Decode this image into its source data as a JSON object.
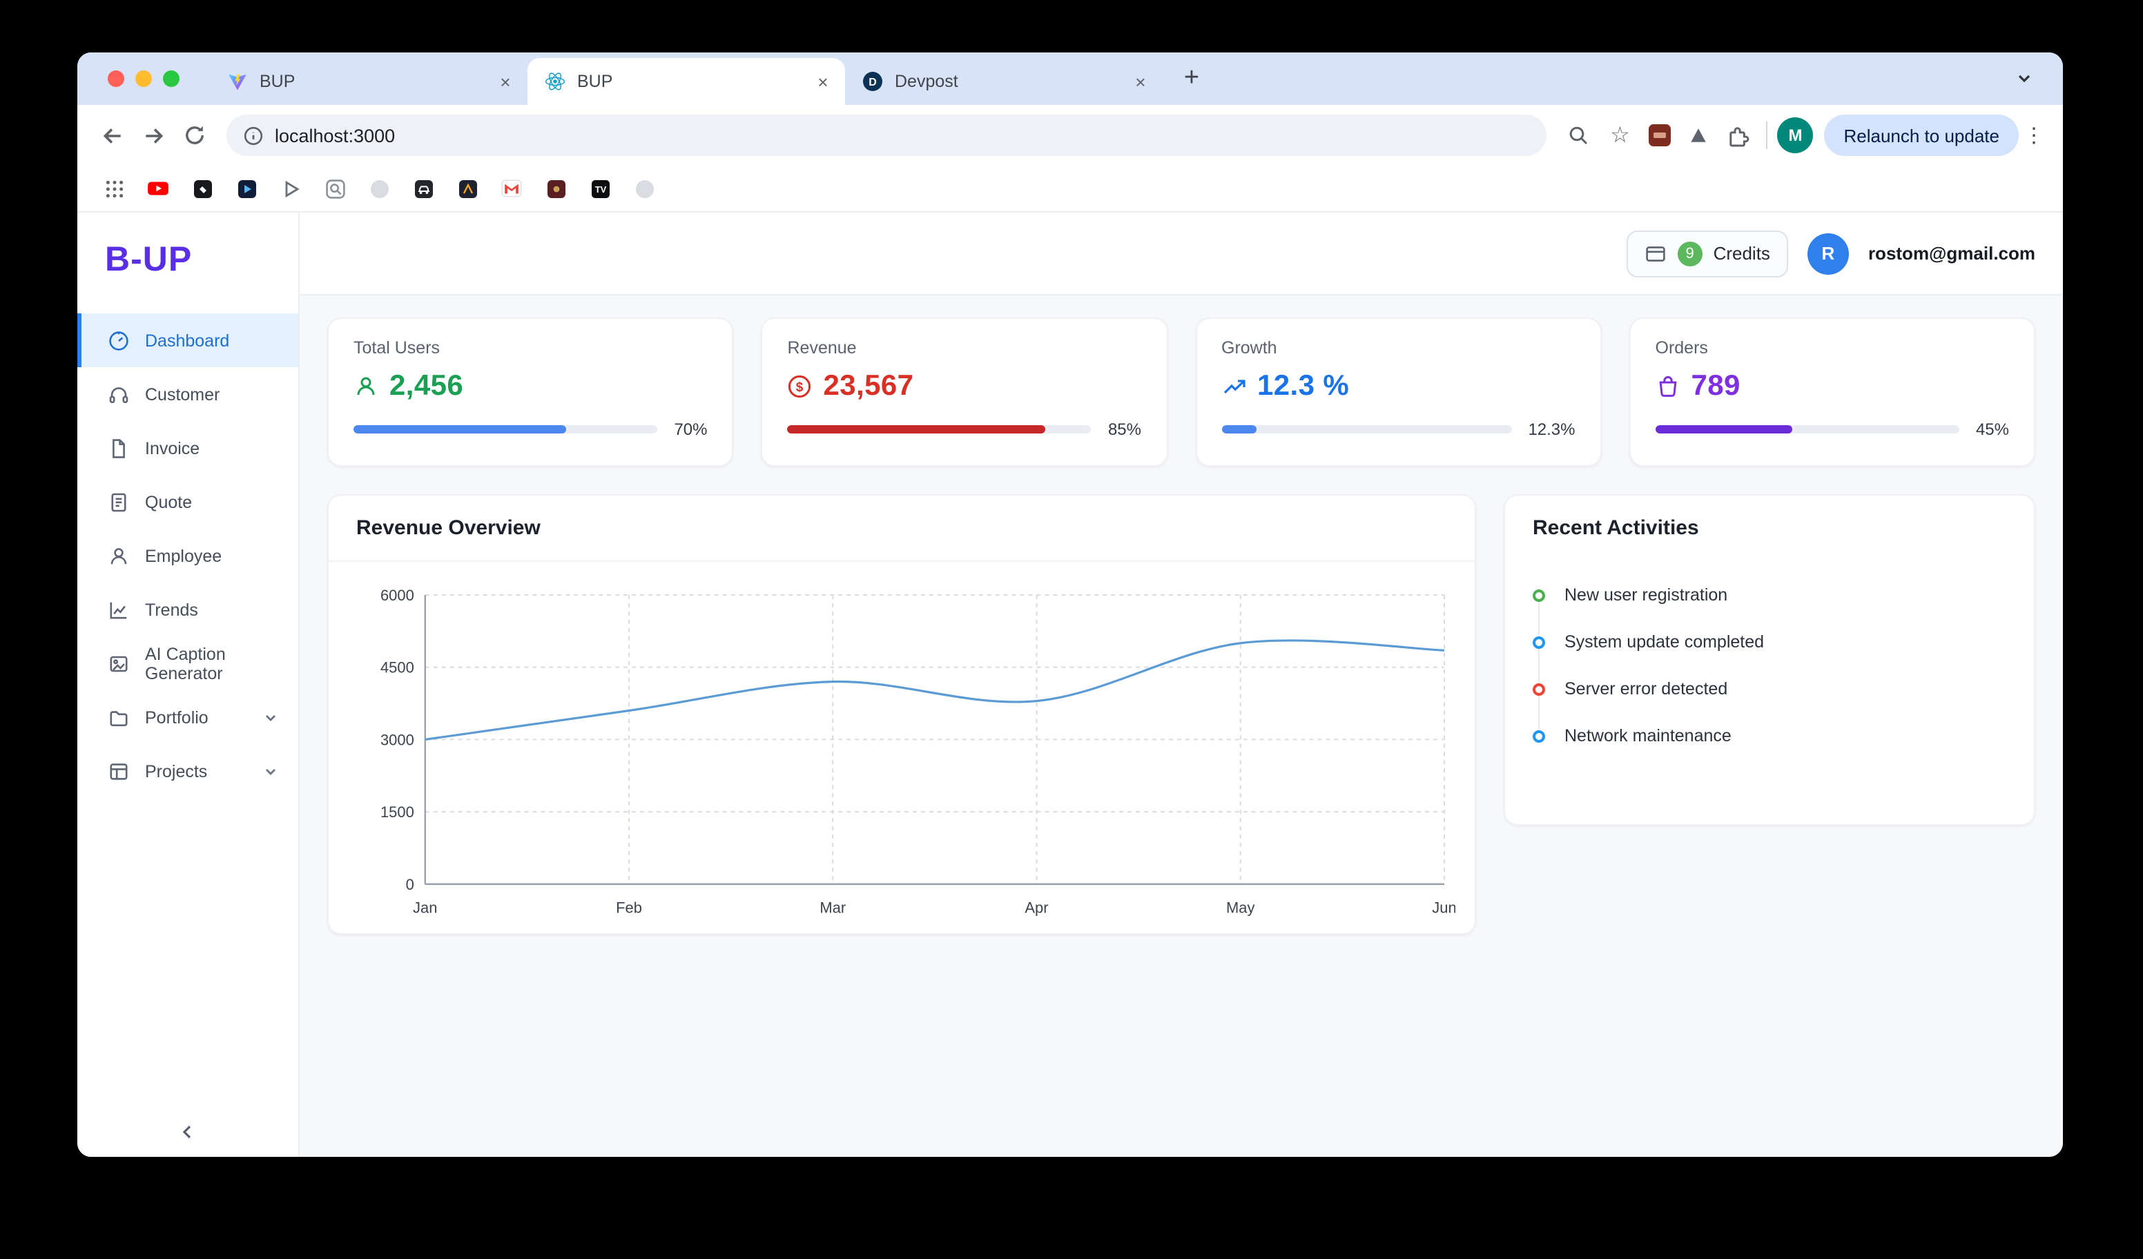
{
  "browser": {
    "tabs": [
      {
        "label": "BUP",
        "icon": "vite-icon"
      },
      {
        "label": "BUP",
        "icon": "react-icon",
        "active": true
      },
      {
        "label": "Devpost",
        "icon": "devpost-icon"
      }
    ],
    "address_bar": {
      "url": "localhost:3000"
    },
    "relaunch_button": "Relaunch to update",
    "profile_initial": "M",
    "bookmarks": [
      "apps-grid-icon",
      "youtube-icon",
      "dark-app-icon",
      "video-play-icon",
      "play-outline-icon",
      "search-box-icon",
      "dimmed-site-icon",
      "car-app-icon",
      "dark-site-icon",
      "gmail-icon",
      "maroon-site-icon",
      "tv-icon",
      "dimmed-site-icon-2"
    ]
  },
  "app": {
    "logo": "B-UP",
    "sidebar": {
      "items": [
        {
          "label": "Dashboard",
          "icon": "gauge-icon",
          "active": true
        },
        {
          "label": "Customer",
          "icon": "headset-icon"
        },
        {
          "label": "Invoice",
          "icon": "file-icon"
        },
        {
          "label": "Quote",
          "icon": "receipt-icon"
        },
        {
          "label": "Employee",
          "icon": "user-icon"
        },
        {
          "label": "Trends",
          "icon": "chart-icon"
        },
        {
          "label": "AI Caption Generator",
          "icon": "image-icon"
        },
        {
          "label": "Portfolio",
          "icon": "folder-icon",
          "expandable": true
        },
        {
          "label": "Projects",
          "icon": "window-icon",
          "expandable": true
        }
      ]
    },
    "header": {
      "credits_count": "9",
      "credits_label": "Credits",
      "avatar_initial": "R",
      "email": "rostom@gmail.com"
    },
    "stats": [
      {
        "title": "Total Users",
        "value": "2,456",
        "icon": "users-icon",
        "value_color": "#1aa053",
        "bar_color": "#4b87ee",
        "percent": 70,
        "percent_label": "70%"
      },
      {
        "title": "Revenue",
        "value": "23,567",
        "icon": "dollar-circle-icon",
        "value_color": "#d93025",
        "bar_color": "#c62828",
        "percent": 85,
        "percent_label": "85%"
      },
      {
        "title": "Growth",
        "value": "12.3 %",
        "icon": "trending-up-icon",
        "value_color": "#1a73e8",
        "bar_color": "#4b87ee",
        "percent": 12.3,
        "percent_label": "12.3%"
      },
      {
        "title": "Orders",
        "value": "789",
        "icon": "shopping-bag-icon",
        "value_color": "#7e2fe0",
        "bar_color": "#6a2bd9",
        "percent": 45,
        "percent_label": "45%"
      }
    ],
    "activities": {
      "title": "Recent Activities",
      "items": [
        {
          "label": "New user registration",
          "color": "#4caf50"
        },
        {
          "label": "System update completed",
          "color": "#2196f3"
        },
        {
          "label": "Server error detected",
          "color": "#f44336"
        },
        {
          "label": "Network maintenance",
          "color": "#2196f3"
        }
      ]
    }
  },
  "chart_data": {
    "type": "line",
    "title": "Revenue Overview",
    "x": [
      "Jan",
      "Feb",
      "Mar",
      "Apr",
      "May",
      "Jun"
    ],
    "series": [
      {
        "name": "Revenue",
        "values": [
          3000,
          3600,
          4200,
          3800,
          5000,
          4850
        ]
      }
    ],
    "ylim": [
      0,
      6000
    ],
    "yticks": [
      0,
      1500,
      3000,
      4500,
      6000
    ],
    "xlabel": "",
    "ylabel": "",
    "grid": true,
    "legend": false,
    "line_color": "#5b9bd5"
  }
}
